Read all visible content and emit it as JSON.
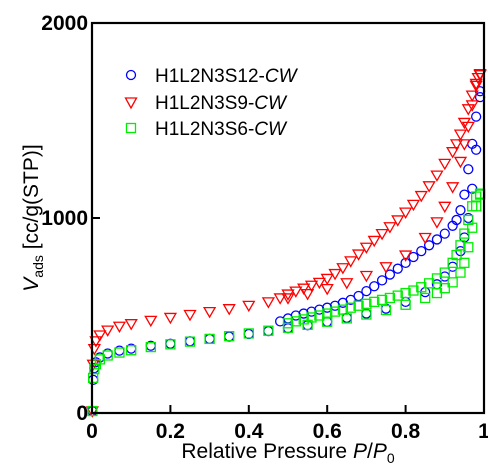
{
  "chart_data": {
    "type": "scatter",
    "xlabel": {
      "main": "Relative Pressure ",
      "var": "P",
      "slash": "/",
      "var2": "P",
      "sub": "0"
    },
    "ylabel": {
      "var": "V",
      "sub": "ads",
      "rest": " [cc/g(STP)]"
    },
    "xlim": [
      0,
      1
    ],
    "ylim": [
      0,
      2000
    ],
    "x_ticks": [
      0,
      0.2,
      0.4,
      0.6,
      0.8,
      1
    ],
    "x_tick_labels": [
      "0",
      "0.2",
      "0.4",
      "0.6",
      "0.8",
      "1"
    ],
    "y_ticks": [
      0,
      1000,
      2000
    ],
    "y_tick_labels": [
      "0",
      "1000",
      "2000"
    ],
    "grid": false,
    "legend_position": "top-left",
    "series": [
      {
        "name": "H1L2N3S12-",
        "name_suffix": "CW",
        "color": "#0000ff",
        "marker": "circle",
        "adsorption": [
          [
            0.001,
            10
          ],
          [
            0.003,
            170
          ],
          [
            0.006,
            230
          ],
          [
            0.01,
            260
          ],
          [
            0.02,
            285
          ],
          [
            0.04,
            305
          ],
          [
            0.07,
            320
          ],
          [
            0.1,
            330
          ],
          [
            0.15,
            345
          ],
          [
            0.2,
            355
          ],
          [
            0.25,
            368
          ],
          [
            0.3,
            380
          ],
          [
            0.35,
            392
          ],
          [
            0.4,
            405
          ],
          [
            0.45,
            420
          ],
          [
            0.5,
            435
          ],
          [
            0.55,
            450
          ],
          [
            0.6,
            468
          ],
          [
            0.65,
            488
          ],
          [
            0.7,
            510
          ],
          [
            0.75,
            535
          ],
          [
            0.8,
            570
          ],
          [
            0.85,
            620
          ],
          [
            0.88,
            660
          ],
          [
            0.9,
            700
          ],
          [
            0.92,
            750
          ],
          [
            0.94,
            830
          ],
          [
            0.95,
            900
          ],
          [
            0.96,
            1000
          ],
          [
            0.97,
            1150
          ],
          [
            0.98,
            1350
          ],
          [
            0.99,
            1620
          ]
        ],
        "desorption": [
          [
            0.99,
            1650
          ],
          [
            0.98,
            1520
          ],
          [
            0.97,
            1380
          ],
          [
            0.96,
            1250
          ],
          [
            0.95,
            1120
          ],
          [
            0.94,
            1040
          ],
          [
            0.93,
            990
          ],
          [
            0.92,
            960
          ],
          [
            0.9,
            920
          ],
          [
            0.88,
            890
          ],
          [
            0.86,
            860
          ],
          [
            0.84,
            830
          ],
          [
            0.82,
            800
          ],
          [
            0.8,
            770
          ],
          [
            0.78,
            740
          ],
          [
            0.76,
            710
          ],
          [
            0.74,
            680
          ],
          [
            0.72,
            650
          ],
          [
            0.7,
            625
          ],
          [
            0.68,
            600
          ],
          [
            0.66,
            580
          ],
          [
            0.64,
            565
          ],
          [
            0.62,
            550
          ],
          [
            0.6,
            540
          ],
          [
            0.58,
            530
          ],
          [
            0.56,
            520
          ],
          [
            0.54,
            510
          ],
          [
            0.52,
            500
          ],
          [
            0.5,
            485
          ],
          [
            0.48,
            470
          ]
        ]
      },
      {
        "name": "H1L2N3S9-",
        "name_suffix": "CW",
        "color": "#ff0000",
        "marker": "triangle-down",
        "adsorption": [
          [
            0.001,
            10
          ],
          [
            0.003,
            250
          ],
          [
            0.006,
            330
          ],
          [
            0.01,
            370
          ],
          [
            0.02,
            400
          ],
          [
            0.04,
            425
          ],
          [
            0.07,
            445
          ],
          [
            0.1,
            458
          ],
          [
            0.15,
            475
          ],
          [
            0.2,
            490
          ],
          [
            0.25,
            505
          ],
          [
            0.3,
            520
          ],
          [
            0.35,
            535
          ],
          [
            0.4,
            552
          ],
          [
            0.45,
            570
          ],
          [
            0.5,
            590
          ],
          [
            0.55,
            612
          ],
          [
            0.6,
            638
          ],
          [
            0.65,
            668
          ],
          [
            0.7,
            705
          ],
          [
            0.75,
            750
          ],
          [
            0.8,
            810
          ],
          [
            0.85,
            900
          ],
          [
            0.88,
            980
          ],
          [
            0.9,
            1060
          ],
          [
            0.92,
            1160
          ],
          [
            0.94,
            1290
          ],
          [
            0.95,
            1380
          ],
          [
            0.96,
            1470
          ],
          [
            0.97,
            1580
          ],
          [
            0.98,
            1680
          ],
          [
            0.99,
            1735
          ]
        ],
        "desorption": [
          [
            0.99,
            1740
          ],
          [
            0.985,
            1720
          ],
          [
            0.98,
            1690
          ],
          [
            0.97,
            1630
          ],
          [
            0.96,
            1560
          ],
          [
            0.95,
            1490
          ],
          [
            0.94,
            1430
          ],
          [
            0.93,
            1380
          ],
          [
            0.92,
            1340
          ],
          [
            0.9,
            1280
          ],
          [
            0.88,
            1220
          ],
          [
            0.86,
            1165
          ],
          [
            0.84,
            1115
          ],
          [
            0.82,
            1070
          ],
          [
            0.8,
            1030
          ],
          [
            0.78,
            990
          ],
          [
            0.76,
            955
          ],
          [
            0.74,
            920
          ],
          [
            0.72,
            885
          ],
          [
            0.7,
            850
          ],
          [
            0.68,
            815
          ],
          [
            0.66,
            780
          ],
          [
            0.64,
            745
          ],
          [
            0.62,
            715
          ],
          [
            0.6,
            690
          ],
          [
            0.58,
            670
          ],
          [
            0.56,
            655
          ],
          [
            0.54,
            640
          ],
          [
            0.52,
            625
          ],
          [
            0.5,
            610
          ],
          [
            0.48,
            590
          ]
        ]
      },
      {
        "name": "H1L2N3S6-",
        "name_suffix": "CW",
        "color": "#00ee00",
        "marker": "square",
        "adsorption": [
          [
            0.001,
            10
          ],
          [
            0.003,
            180
          ],
          [
            0.006,
            225
          ],
          [
            0.01,
            250
          ],
          [
            0.02,
            275
          ],
          [
            0.04,
            295
          ],
          [
            0.07,
            310
          ],
          [
            0.1,
            322
          ],
          [
            0.15,
            338
          ],
          [
            0.2,
            352
          ],
          [
            0.25,
            366
          ],
          [
            0.3,
            380
          ],
          [
            0.35,
            394
          ],
          [
            0.4,
            408
          ],
          [
            0.45,
            422
          ],
          [
            0.5,
            437
          ],
          [
            0.55,
            452
          ],
          [
            0.6,
            468
          ],
          [
            0.65,
            485
          ],
          [
            0.7,
            505
          ],
          [
            0.75,
            528
          ],
          [
            0.8,
            555
          ],
          [
            0.85,
            590
          ],
          [
            0.88,
            615
          ],
          [
            0.9,
            640
          ],
          [
            0.92,
            670
          ],
          [
            0.94,
            720
          ],
          [
            0.95,
            770
          ],
          [
            0.96,
            850
          ],
          [
            0.97,
            950
          ],
          [
            0.98,
            1060
          ],
          [
            0.99,
            1120
          ]
        ],
        "desorption": [
          [
            0.99,
            1125
          ],
          [
            0.98,
            1110
          ],
          [
            0.97,
            1060
          ],
          [
            0.96,
            990
          ],
          [
            0.95,
            920
          ],
          [
            0.94,
            860
          ],
          [
            0.93,
            810
          ],
          [
            0.92,
            770
          ],
          [
            0.9,
            720
          ],
          [
            0.88,
            690
          ],
          [
            0.86,
            665
          ],
          [
            0.84,
            645
          ],
          [
            0.82,
            628
          ],
          [
            0.8,
            615
          ],
          [
            0.78,
            602
          ],
          [
            0.76,
            590
          ],
          [
            0.74,
            580
          ],
          [
            0.72,
            570
          ],
          [
            0.7,
            560
          ],
          [
            0.68,
            550
          ],
          [
            0.66,
            540
          ],
          [
            0.64,
            530
          ],
          [
            0.62,
            520
          ],
          [
            0.6,
            510
          ],
          [
            0.58,
            500
          ],
          [
            0.56,
            490
          ],
          [
            0.54,
            480
          ],
          [
            0.52,
            470
          ],
          [
            0.5,
            460
          ]
        ]
      }
    ]
  }
}
